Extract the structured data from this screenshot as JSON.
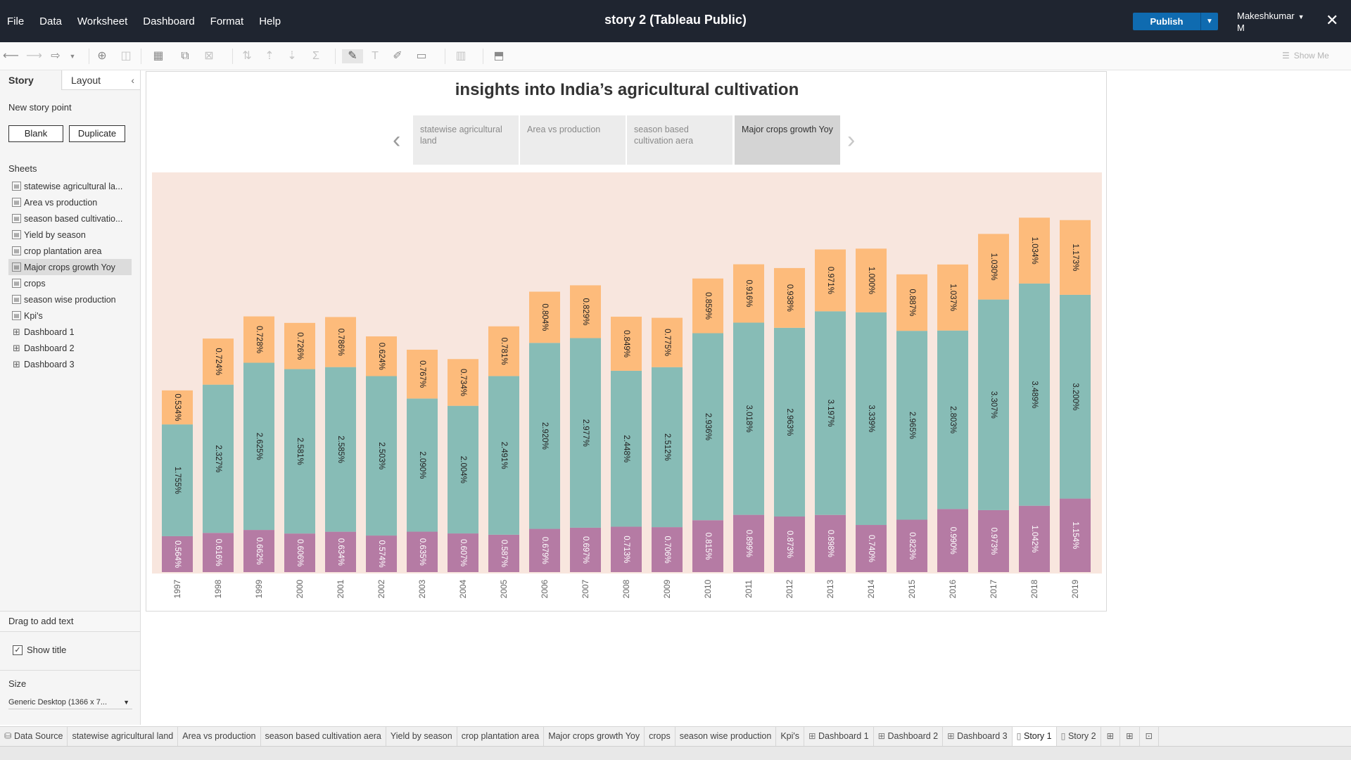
{
  "menu": [
    "File",
    "Data",
    "Worksheet",
    "Dashboard",
    "Format",
    "Help"
  ],
  "window_title": "story 2 (Tableau Public)",
  "publish_label": "Publish",
  "user": {
    "line1": "Makeshkumar",
    "line2": "M"
  },
  "show_me": "Show Me",
  "left_panel": {
    "tab_story": "Story",
    "tab_layout": "Layout",
    "new_story_point": "New story point",
    "blank": "Blank",
    "duplicate": "Duplicate",
    "sheets_header": "Sheets",
    "sheets": [
      "statewise agricultural la...",
      "Area vs production",
      "season based cultivatio...",
      "Yield by season",
      "crop plantation area",
      "Major crops growth Yoy",
      "crops",
      "season wise production",
      "Kpi's",
      "Dashboard 1",
      "Dashboard 2",
      "Dashboard 3"
    ],
    "drag_text": "Drag to add text",
    "show_title": "Show title",
    "size_header": "Size",
    "size_value": "Generic Desktop (1366 x 7..."
  },
  "story": {
    "title": "insights into India’s agricultural cultivation",
    "points": [
      "statewise agricultural land",
      "Area vs production",
      "season based cultivation aera",
      "Major crops growth Yoy"
    ],
    "active_point": 3
  },
  "bottom_tabs": [
    "Data Source",
    "statewise agricultural land",
    "Area vs production",
    "season based cultivation aera",
    "Yield by season",
    "crop plantation area",
    "Major crops growth Yoy",
    "crops",
    "season wise production",
    "Kpi's",
    "Dashboard 1",
    "Dashboard 2",
    "Dashboard 3",
    "Story 1",
    "Story 2"
  ],
  "active_bottom_tab": "Story 1",
  "colors": {
    "top": "#fdbb7b",
    "middle": "#87bcb6",
    "bottom": "#b57ba4",
    "chart_bg": "#f8e6de",
    "topbar": "#1f2530",
    "publish": "#0f6bb0"
  },
  "chart_data": {
    "type": "bar",
    "stacked": true,
    "categories": [
      "1997",
      "1998",
      "1999",
      "2000",
      "2001",
      "2002",
      "2003",
      "2004",
      "2005",
      "2006",
      "2007",
      "2008",
      "2009",
      "2010",
      "2011",
      "2012",
      "2013",
      "2014",
      "2015",
      "2016",
      "2017",
      "2018",
      "2019"
    ],
    "series": [
      {
        "values": [
          0.564,
          0.616,
          0.662,
          0.606,
          0.634,
          0.574,
          0.635,
          0.607,
          0.587,
          0.679,
          0.697,
          0.713,
          0.706,
          0.815,
          0.899,
          0.873,
          0.898,
          0.74,
          0.823,
          0.99,
          0.973,
          1.042,
          1.154
        ]
      },
      {
        "values": [
          1.755,
          2.327,
          2.625,
          2.581,
          2.585,
          2.503,
          2.09,
          2.004,
          2.491,
          2.92,
          2.977,
          2.448,
          2.512,
          2.936,
          3.018,
          2.963,
          3.197,
          3.339,
          2.965,
          2.803,
          3.307,
          3.489,
          3.2
        ]
      },
      {
        "values": [
          0.534,
          0.724,
          0.728,
          0.726,
          0.786,
          0.624,
          0.767,
          0.734,
          0.781,
          0.804,
          0.829,
          0.849,
          0.775,
          0.859,
          0.916,
          0.938,
          0.971,
          1.0,
          0.887,
          1.037,
          1.03,
          1.034,
          1.173
        ]
      }
    ],
    "labels": [
      [
        "0.564%",
        "0.616%",
        "0.662%",
        "0.606%",
        "0.634%",
        "0.574%",
        "0.635%",
        "0.607%",
        "0.587%",
        "0.679%",
        "0.697%",
        "0.713%",
        "0.706%",
        "0.815%",
        "0.899%",
        "0.873%",
        "0.898%",
        "0.740%",
        "0.823%",
        "0.990%",
        "0.973%",
        "1.042%",
        "1.154%"
      ],
      [
        "1.755%",
        "2.327%",
        "2.625%",
        "2.581%",
        "2.585%",
        "2.503%",
        "2.090%",
        "2.004%",
        "2.491%",
        "2.920%",
        "2.977%",
        "2.448%",
        "2.512%",
        "2.936%",
        "3.018%",
        "2.963%",
        "3.197%",
        "3.339%",
        "2.965%",
        "2.803%",
        "3.307%",
        "3.489%",
        "3.200%"
      ],
      [
        "0.534%",
        "0.724%",
        "0.728%",
        "0.726%",
        "0.786%",
        "0.624%",
        "0.767%",
        "0.734%",
        "0.781%",
        "0.804%",
        "0.829%",
        "0.849%",
        "0.775%",
        "0.859%",
        "0.916%",
        "0.938%",
        "0.971%",
        "1.000%",
        "0.887%",
        "1.037%",
        "1.030%",
        "1.034%",
        "1.173%"
      ]
    ],
    "ylim": [
      0,
      5.9
    ],
    "grid": false,
    "legend": "none"
  }
}
